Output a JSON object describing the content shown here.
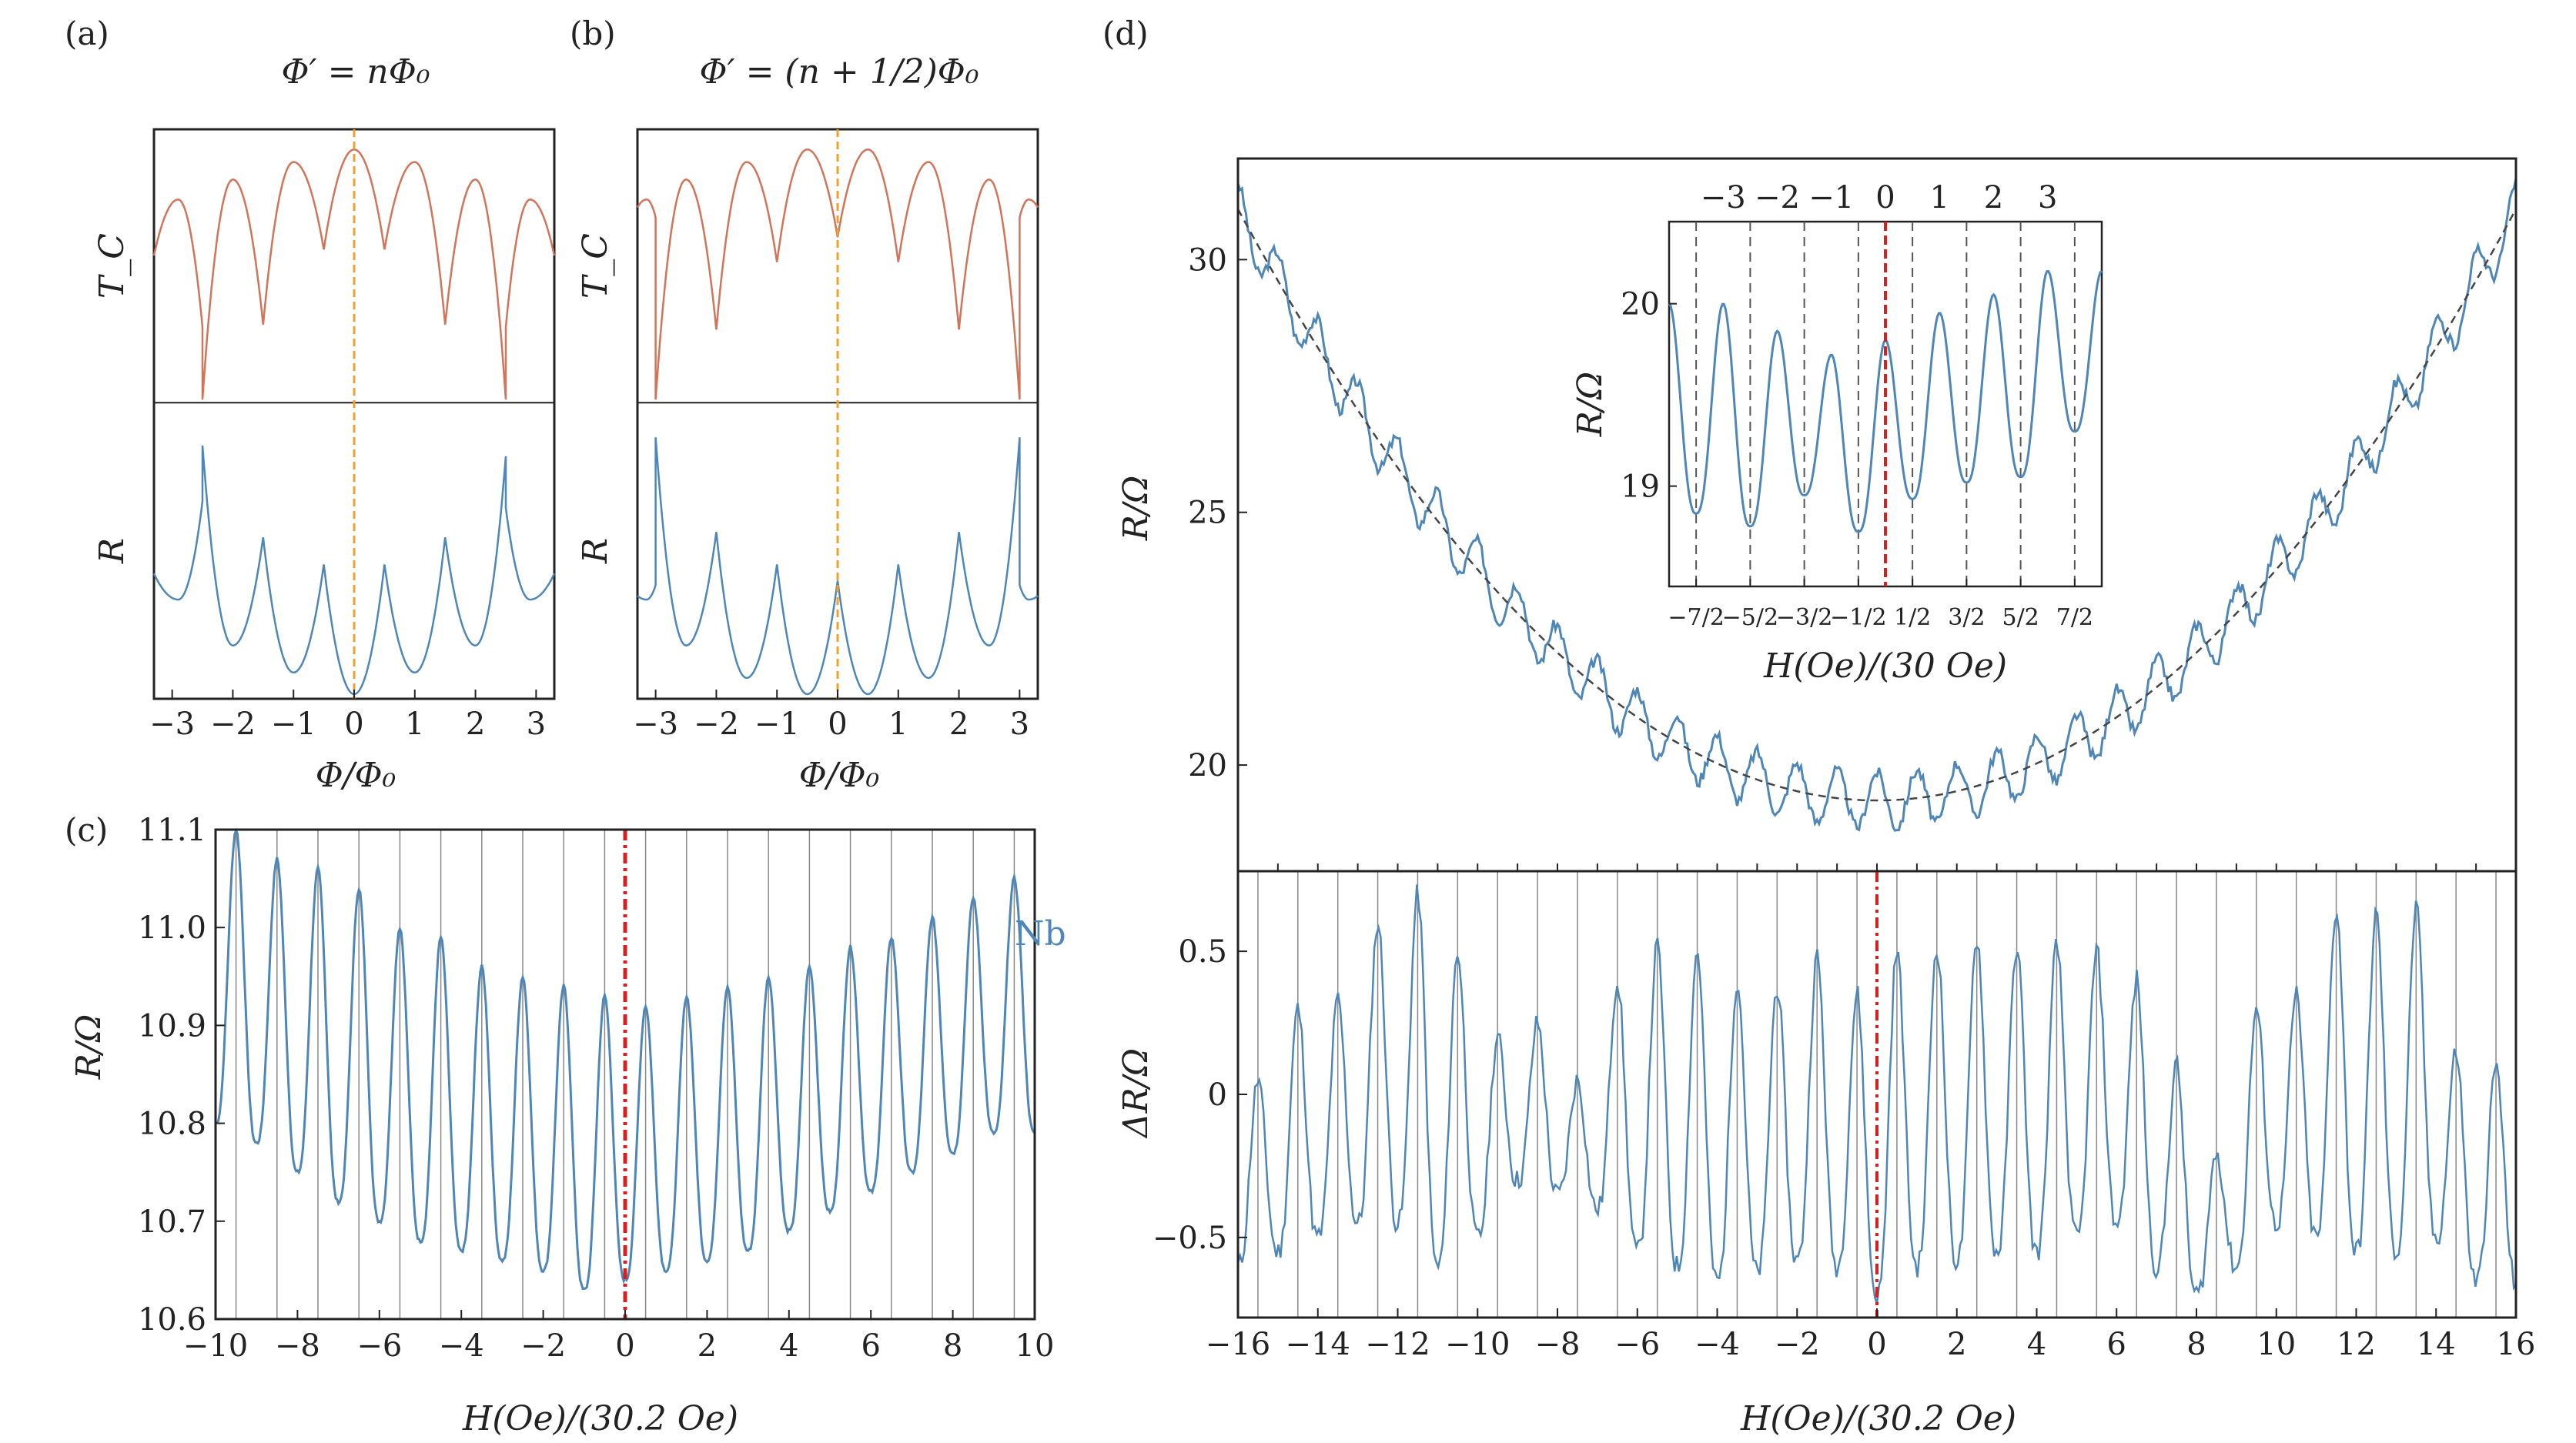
{
  "figure_labels": {
    "a": "(a)",
    "b": "(b)",
    "c": "(c)",
    "d": "(d)"
  },
  "colors": {
    "tc": "#d0755a",
    "r": "#4f86b8",
    "orange": "#f0a030",
    "red": "#d62020",
    "grid": "#888888"
  },
  "chart_data": [
    {
      "id": "a",
      "type": "line",
      "title": "Φ′ = nΦ₀",
      "xlabel": "Φ/Φ₀",
      "xlim": [
        -3.3,
        3.3
      ],
      "xticks": [
        -3,
        -2,
        -1,
        0,
        1,
        2,
        3
      ],
      "xtick_labels": [
        "−3",
        "−2",
        "−1",
        "0",
        "1",
        "2",
        "3"
      ],
      "marker_x": 0,
      "series": [
        {
          "name": "T_C",
          "ylabel": "T_C",
          "cusps": [
            -2.5,
            -1.5,
            -0.5,
            0.5,
            1.5,
            2.5
          ],
          "cusp_depth": [
            1.0,
            0.7,
            0.4,
            0.4,
            0.7,
            1.0
          ],
          "peak_top": [
            0.8,
            0.88,
            0.95,
            1.0,
            0.95,
            0.88,
            0.8
          ]
        },
        {
          "name": "R",
          "ylabel": "R",
          "cusps": [
            -2.5,
            -1.5,
            -0.5,
            0.5,
            1.5,
            2.5
          ],
          "cusp_peak": [
            0.92,
            0.58,
            0.48,
            0.48,
            0.58,
            0.88
          ],
          "trough_min": [
            0.35,
            0.18,
            0.08,
            0.0,
            0.08,
            0.18,
            0.35
          ]
        }
      ]
    },
    {
      "id": "b",
      "type": "line",
      "title": "Φ′ = (n + 1/2)Φ₀",
      "xlabel": "Φ/Φ₀",
      "xlim": [
        -3.3,
        3.3
      ],
      "xticks": [
        -3,
        -2,
        -1,
        0,
        1,
        2,
        3
      ],
      "xtick_labels": [
        "−3",
        "−2",
        "−1",
        "0",
        "1",
        "2",
        "3"
      ],
      "marker_x": 0,
      "series": [
        {
          "name": "T_C",
          "ylabel": "T_C",
          "cusps": [
            -3,
            -2,
            -1,
            0,
            1,
            2,
            3
          ],
          "cusp_depth": [
            1.0,
            0.72,
            0.45,
            0.35,
            0.45,
            0.72,
            1.0
          ],
          "peak_top": [
            0.8,
            0.88,
            0.95,
            1.0,
            1.0,
            0.95,
            0.88,
            0.8
          ]
        },
        {
          "name": "R",
          "ylabel": "R",
          "cusps": [
            -3,
            -2,
            -1,
            0,
            1,
            2,
            3
          ],
          "cusp_peak": [
            0.95,
            0.6,
            0.48,
            0.42,
            0.48,
            0.6,
            0.95
          ],
          "trough_min": [
            0.35,
            0.18,
            0.06,
            0.0,
            0.0,
            0.06,
            0.18,
            0.35
          ]
        }
      ]
    },
    {
      "id": "c",
      "type": "line",
      "xlabel": "H(Oe)/(30.2 Oe)",
      "ylabel": "R/Ω",
      "xlim": [
        -10,
        10
      ],
      "ylim": [
        10.6,
        11.1
      ],
      "xticks": [
        -10,
        -8,
        -6,
        -4,
        -2,
        0,
        2,
        4,
        6,
        8,
        10
      ],
      "xtick_labels": [
        "−10",
        "−8",
        "−6",
        "−4",
        "−2",
        "0",
        "2",
        "4",
        "6",
        "8",
        "10"
      ],
      "yticks": [
        10.6,
        10.7,
        10.8,
        10.9,
        11.0,
        11.1
      ],
      "ytick_labels": [
        "10.6",
        "10.7",
        "10.8",
        "10.9",
        "11.0",
        "11.1"
      ],
      "annotation": "Nb",
      "marker_x": 0,
      "peak_x": [
        -9.5,
        -8.5,
        -7.5,
        -6.5,
        -5.5,
        -4.5,
        -3.5,
        -2.5,
        -1.5,
        -0.5,
        0.5,
        1.5,
        2.5,
        3.5,
        4.5,
        5.5,
        6.5,
        7.5,
        8.5,
        9.5
      ],
      "peak_y": [
        11.1,
        11.07,
        11.06,
        11.04,
        11.0,
        10.99,
        10.96,
        10.95,
        10.94,
        10.93,
        10.92,
        10.93,
        10.94,
        10.95,
        10.96,
        10.98,
        10.99,
        11.01,
        11.03,
        11.05
      ],
      "trough_y": [
        10.8,
        10.78,
        10.75,
        10.72,
        10.7,
        10.68,
        10.67,
        10.66,
        10.65,
        10.63,
        10.64,
        10.65,
        10.66,
        10.67,
        10.69,
        10.71,
        10.73,
        10.75,
        10.77,
        10.79
      ]
    },
    {
      "id": "d",
      "type": "line",
      "xlabel": "H(Oe)/(30.2 Oe)",
      "xlim": [
        -16,
        16
      ],
      "xticks": [
        -16,
        -14,
        -12,
        -10,
        -8,
        -6,
        -4,
        -2,
        0,
        2,
        4,
        6,
        8,
        10,
        12,
        14,
        16
      ],
      "xtick_labels": [
        "−16",
        "−14",
        "−12",
        "−10",
        "−8",
        "−6",
        "−4",
        "−2",
        "0",
        "2",
        "4",
        "6",
        "8",
        "10",
        "12",
        "14",
        "16"
      ],
      "marker_x": 0,
      "top": {
        "ylabel": "R/Ω",
        "ylim": [
          17.9,
          32.0
        ],
        "yticks": [
          20,
          25,
          30
        ],
        "ytick_labels": [
          "20",
          "25",
          "30"
        ],
        "fit_min_y": 19.3,
        "fit_edge_y": 31.0,
        "osc_amp": 0.55
      },
      "bottom": {
        "ylabel": "ΔR/Ω",
        "ylim": [
          -0.78,
          0.78
        ],
        "yticks": [
          -0.5,
          0,
          0.5
        ],
        "ytick_labels": [
          "−0.5",
          "0",
          "0.5"
        ],
        "peak_x": [
          -15.5,
          -14.5,
          -13.5,
          -12.5,
          -11.5,
          -10.5,
          -9.5,
          -8.5,
          -7.5,
          -6.5,
          -5.5,
          -4.5,
          -3.5,
          -2.5,
          -1.5,
          -0.5,
          0.5,
          1.5,
          2.5,
          3.5,
          4.5,
          5.5,
          6.5,
          7.5,
          8.5,
          9.5,
          10.5,
          11.5,
          12.5,
          13.5,
          14.5,
          15.5
        ],
        "peak_y": [
          0.05,
          0.3,
          0.33,
          0.6,
          0.7,
          0.5,
          0.2,
          0.25,
          0.05,
          0.4,
          0.52,
          0.5,
          0.4,
          0.38,
          0.48,
          0.35,
          0.5,
          0.52,
          0.55,
          0.52,
          0.52,
          0.5,
          0.4,
          0.1,
          -0.2,
          0.3,
          0.35,
          0.65,
          0.63,
          0.65,
          0.15,
          0.1
        ],
        "trough_y": [
          -0.6,
          -0.55,
          -0.5,
          -0.45,
          -0.45,
          -0.6,
          -0.5,
          -0.3,
          -0.35,
          -0.4,
          -0.55,
          -0.6,
          -0.65,
          -0.62,
          -0.58,
          -0.6,
          -0.7,
          -0.6,
          -0.58,
          -0.55,
          -0.55,
          -0.5,
          -0.45,
          -0.6,
          -0.7,
          -0.6,
          -0.45,
          -0.5,
          -0.55,
          -0.55,
          -0.5,
          -0.65
        ]
      },
      "inset": {
        "ylabel": "R/Ω",
        "xlabel": "H(Oe)/(30 Oe)",
        "xlim": [
          -4,
          4
        ],
        "ylim": [
          18.45,
          20.45
        ],
        "top_ticks": [
          "−3",
          "−2",
          "−1",
          "0",
          "1",
          "2",
          "3"
        ],
        "bottom_ticks": [
          "−7/2",
          "−5/2",
          "−3/2",
          "−1/2",
          "1/2",
          "3/2",
          "5/2",
          "7/2"
        ],
        "yticks": [
          19,
          20
        ],
        "ytick_labels": [
          "19",
          "20"
        ],
        "peak_y": [
          20.0,
          19.85,
          19.72,
          19.8,
          19.95,
          20.05,
          20.18
        ],
        "trough_y": [
          18.85,
          18.78,
          18.95,
          18.75,
          18.93,
          19.02,
          19.05,
          19.3
        ]
      }
    }
  ]
}
